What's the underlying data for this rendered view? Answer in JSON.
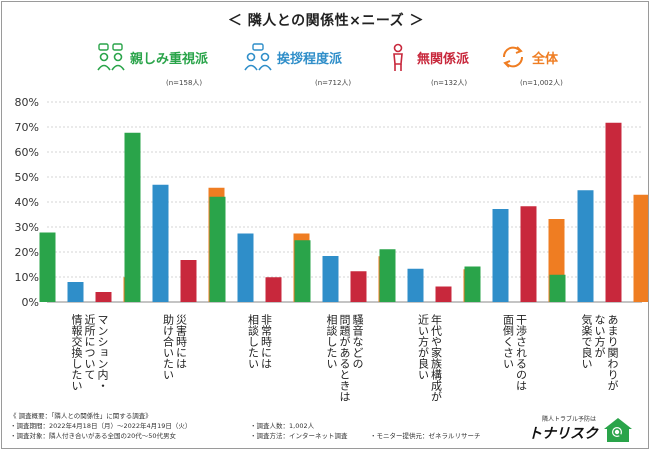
{
  "title": "＜ 隣人との関係性×ニーズ ＞",
  "legend": [
    {
      "label": "親しみ重視派",
      "n": "(n=158人)",
      "color": "#2aa44a",
      "icon": "people-chat-icon"
    },
    {
      "label": "挨拶程度派",
      "n": "(n=712人)",
      "color": "#2f8ec9",
      "icon": "people-greeting-icon"
    },
    {
      "label": "無関係派",
      "n": "(n=132人)",
      "color": "#c8283c",
      "icon": "person-alone-icon"
    },
    {
      "label": "全体",
      "n": "(n=1,002人)",
      "color": "#ef7d22",
      "icon": "refresh-cycle-icon"
    }
  ],
  "chart_data": {
    "type": "bar",
    "title": "＜ 隣人との関係性×ニーズ ＞",
    "categories": [
      "マンション内・近所について情報交換したい",
      "災害時には助け合いたい",
      "非常時には相談したい",
      "騒音などの問題があるときは相談したい",
      "年代や家族構成が近い方が良い",
      "干渉されるのは面倒くさい",
      "あまり関わりがない方が気楽で良い"
    ],
    "category_lines": [
      [
        "マンション内・",
        "近所について",
        "情報交換したい"
      ],
      [
        "災害時には",
        "助け合いたい"
      ],
      [
        "非常時には",
        "相談したい"
      ],
      [
        "騒音などの",
        "問題があるときは",
        "相談したい"
      ],
      [
        "年代や家族構成が",
        "近い方が良い"
      ],
      [
        "干渉されるのは",
        "面倒くさい"
      ],
      [
        "あまり関わりが",
        "ない方が",
        "気楽で良い"
      ]
    ],
    "series": [
      {
        "name": "親しみ重視派",
        "values": [
          27.8,
          67.7,
          42.1,
          24.7,
          21.1,
          14.2,
          10.9
        ]
      },
      {
        "name": "挨拶程度派",
        "values": [
          8.0,
          46.9,
          27.4,
          18.4,
          13.3,
          37.2,
          44.7
        ]
      },
      {
        "name": "無関係派",
        "values": [
          4.0,
          16.8,
          9.9,
          12.3,
          6.2,
          38.3,
          71.7
        ]
      },
      {
        "name": "全体",
        "values": [
          9.9,
          45.7,
          27.4,
          18.3,
          13.1,
          33.2,
          42.9
        ]
      }
    ],
    "colors": [
      "#2aa44a",
      "#2f8ec9",
      "#c8283c",
      "#ef7d22"
    ],
    "y_ticks": [
      "80%",
      "70%",
      "60%",
      "50%",
      "40%",
      "30%",
      "20%",
      "10%",
      "0%"
    ],
    "ylim": [
      0,
      80
    ],
    "xlabel": "",
    "ylabel": ""
  },
  "footer": {
    "heading": "《 調査概要：「隣人との関係性」に関する調査》",
    "period": "・調査期間：2022年4月18日（月）～2022年4月19日（火）",
    "count": "・調査人数：1,002人",
    "target": "・調査対象：隣人付き合いがある全国の20代～50代男女",
    "method": "・調査方法：インターネット調査",
    "provider": "・モニター提供元：ゼネラルリサーチ"
  },
  "brand": {
    "tagline": "隣人トラブル予防は",
    "name": "トナリスク",
    "logo": "house-magnifier-logo"
  }
}
